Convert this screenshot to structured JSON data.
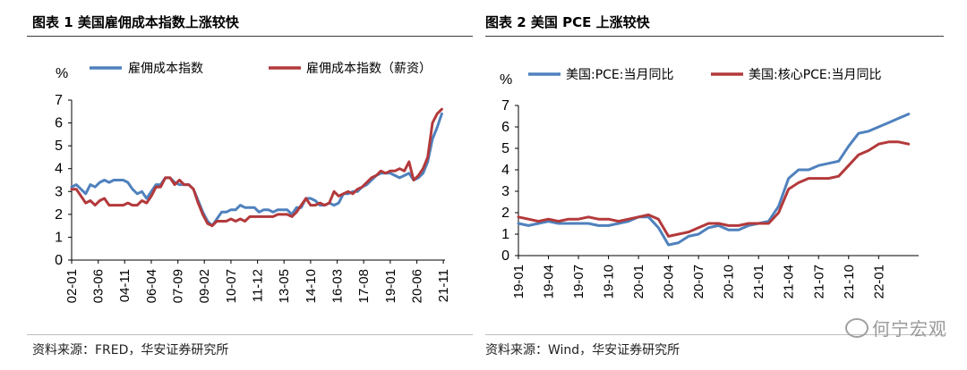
{
  "colors": {
    "blue": "#4f81bd",
    "red": "#b3393b",
    "axis": "#000000"
  },
  "charts": [
    {
      "id": "left",
      "title": "图表 1  美国雇佣成本指数上涨较快",
      "source": "资料来源：FRED，华安证券研究所",
      "chart_data": {
        "type": "line",
        "title": "美国雇佣成本指数上涨较快",
        "ylabel": "%",
        "ylim": [
          0,
          7
        ],
        "yticks": [
          0,
          1,
          2,
          3,
          4,
          5,
          6,
          7
        ],
        "xlim": [
          2002.0,
          2021.92
        ],
        "tick_labels": [
          "02-01",
          "03-06",
          "04-11",
          "06-04",
          "07-09",
          "09-02",
          "10-07",
          "11-12",
          "13-05",
          "14-10",
          "16-03",
          "17-08",
          "19-01",
          "20-06",
          "21-11"
        ],
        "tick_x": [
          2002.0,
          2003.42,
          2004.83,
          2006.25,
          2007.67,
          2009.08,
          2010.5,
          2011.92,
          2013.33,
          2014.75,
          2016.17,
          2017.58,
          2019.0,
          2020.42,
          2021.83
        ],
        "series": [
          {
            "name": "雇佣成本指数",
            "color": "#4f81bd",
            "x": [
              2002.0,
              2002.25,
              2002.5,
              2002.75,
              2003.0,
              2003.25,
              2003.5,
              2003.75,
              2004.0,
              2004.25,
              2004.5,
              2004.75,
              2005.0,
              2005.25,
              2005.5,
              2005.75,
              2006.0,
              2006.25,
              2006.5,
              2006.75,
              2007.0,
              2007.25,
              2007.5,
              2007.75,
              2008.0,
              2008.25,
              2008.5,
              2008.75,
              2009.0,
              2009.25,
              2009.5,
              2009.75,
              2010.0,
              2010.25,
              2010.5,
              2010.75,
              2011.0,
              2011.25,
              2011.5,
              2011.75,
              2012.0,
              2012.25,
              2012.5,
              2012.75,
              2013.0,
              2013.25,
              2013.5,
              2013.75,
              2014.0,
              2014.25,
              2014.5,
              2014.75,
              2015.0,
              2015.25,
              2015.5,
              2015.75,
              2016.0,
              2016.25,
              2016.5,
              2016.75,
              2017.0,
              2017.25,
              2017.5,
              2017.75,
              2018.0,
              2018.25,
              2018.5,
              2018.75,
              2019.0,
              2019.25,
              2019.5,
              2019.75,
              2020.0,
              2020.25,
              2020.5,
              2020.75,
              2021.0,
              2021.25,
              2021.5,
              2021.75
            ],
            "values": [
              3.2,
              3.3,
              3.1,
              2.9,
              3.3,
              3.2,
              3.4,
              3.5,
              3.4,
              3.5,
              3.5,
              3.5,
              3.4,
              3.1,
              2.9,
              3.0,
              2.7,
              3.0,
              3.3,
              3.3,
              3.6,
              3.6,
              3.4,
              3.3,
              3.3,
              3.3,
              3.1,
              2.6,
              2.1,
              1.7,
              1.5,
              1.8,
              2.1,
              2.1,
              2.2,
              2.2,
              2.4,
              2.3,
              2.3,
              2.3,
              2.1,
              2.2,
              2.2,
              2.1,
              2.2,
              2.2,
              2.2,
              2.0,
              2.3,
              2.3,
              2.7,
              2.7,
              2.6,
              2.4,
              2.4,
              2.5,
              2.4,
              2.5,
              2.9,
              2.9,
              3.0,
              3.0,
              3.2,
              3.3,
              3.5,
              3.7,
              3.8,
              3.8,
              3.8,
              3.7,
              3.6,
              3.7,
              3.8,
              3.5,
              3.6,
              3.8,
              4.3,
              5.3,
              5.8,
              6.4
            ]
          },
          {
            "name": "雇佣成本指数（薪资）",
            "color": "#b3393b",
            "x": [
              2002.0,
              2002.25,
              2002.5,
              2002.75,
              2003.0,
              2003.25,
              2003.5,
              2003.75,
              2004.0,
              2004.25,
              2004.5,
              2004.75,
              2005.0,
              2005.25,
              2005.5,
              2005.75,
              2006.0,
              2006.25,
              2006.5,
              2006.75,
              2007.0,
              2007.25,
              2007.5,
              2007.75,
              2008.0,
              2008.25,
              2008.5,
              2008.75,
              2009.0,
              2009.25,
              2009.5,
              2009.75,
              2010.0,
              2010.25,
              2010.5,
              2010.75,
              2011.0,
              2011.25,
              2011.5,
              2011.75,
              2012.0,
              2012.25,
              2012.5,
              2012.75,
              2013.0,
              2013.25,
              2013.5,
              2013.75,
              2014.0,
              2014.25,
              2014.5,
              2014.75,
              2015.0,
              2015.25,
              2015.5,
              2015.75,
              2016.0,
              2016.25,
              2016.5,
              2016.75,
              2017.0,
              2017.25,
              2017.5,
              2017.75,
              2018.0,
              2018.25,
              2018.5,
              2018.75,
              2019.0,
              2019.25,
              2019.5,
              2019.75,
              2020.0,
              2020.25,
              2020.5,
              2020.75,
              2021.0,
              2021.25,
              2021.5,
              2021.75
            ],
            "values": [
              3.1,
              3.1,
              2.8,
              2.5,
              2.6,
              2.4,
              2.6,
              2.7,
              2.4,
              2.4,
              2.4,
              2.4,
              2.5,
              2.4,
              2.4,
              2.6,
              2.5,
              2.8,
              3.2,
              3.2,
              3.6,
              3.6,
              3.3,
              3.5,
              3.3,
              3.3,
              3.1,
              2.5,
              2.0,
              1.6,
              1.5,
              1.7,
              1.7,
              1.7,
              1.8,
              1.7,
              1.8,
              1.7,
              1.9,
              1.9,
              1.9,
              1.9,
              1.9,
              1.9,
              2.0,
              2.0,
              2.0,
              1.9,
              2.1,
              2.4,
              2.7,
              2.4,
              2.4,
              2.5,
              2.4,
              2.5,
              3.0,
              2.8,
              2.9,
              3.0,
              2.9,
              3.1,
              3.2,
              3.4,
              3.6,
              3.7,
              3.9,
              3.8,
              3.9,
              3.9,
              4.0,
              3.9,
              4.3,
              3.5,
              3.7,
              4.0,
              4.5,
              6.0,
              6.4,
              6.6
            ]
          }
        ]
      }
    },
    {
      "id": "right",
      "title": "图表 2  美国 PCE 上涨较快",
      "source": "资料来源：Wind，华安证券研究所",
      "watermark": "何宁宏观",
      "chart_data": {
        "type": "line",
        "title": "美国 PCE 上涨较快",
        "ylabel": "%",
        "ylim": [
          0,
          7
        ],
        "yticks": [
          0,
          1,
          2,
          3,
          4,
          5,
          6,
          7
        ],
        "xlim": [
          0,
          40
        ],
        "tick_labels": [
          "19-01",
          "19-04",
          "19-07",
          "19-10",
          "20-01",
          "20-04",
          "20-07",
          "20-10",
          "21-01",
          "21-04",
          "21-07",
          "21-10",
          "22-01"
        ],
        "tick_x": [
          0,
          3,
          6,
          9,
          12,
          15,
          18,
          21,
          24,
          27,
          30,
          33,
          36
        ],
        "series": [
          {
            "name": "美国:PCE:当月同比",
            "color": "#4f81bd",
            "x": [
              0,
              1,
              2,
              3,
              4,
              5,
              6,
              7,
              8,
              9,
              10,
              11,
              12,
              13,
              14,
              15,
              16,
              17,
              18,
              19,
              20,
              21,
              22,
              23,
              24,
              25,
              26,
              27,
              28,
              29,
              30,
              31,
              32,
              33,
              34,
              35,
              36,
              37,
              38,
              39
            ],
            "values": [
              1.5,
              1.4,
              1.5,
              1.6,
              1.5,
              1.5,
              1.5,
              1.5,
              1.4,
              1.4,
              1.5,
              1.6,
              1.8,
              1.8,
              1.3,
              0.5,
              0.6,
              0.9,
              1.0,
              1.3,
              1.4,
              1.2,
              1.2,
              1.4,
              1.5,
              1.6,
              2.3,
              3.6,
              4.0,
              4.0,
              4.2,
              4.3,
              4.4,
              5.1,
              5.7,
              5.8,
              6.0,
              6.2,
              6.4,
              6.6
            ]
          },
          {
            "name": "美国:核心PCE:当月同比",
            "color": "#b3393b",
            "x": [
              0,
              1,
              2,
              3,
              4,
              5,
              6,
              7,
              8,
              9,
              10,
              11,
              12,
              13,
              14,
              15,
              16,
              17,
              18,
              19,
              20,
              21,
              22,
              23,
              24,
              25,
              26,
              27,
              28,
              29,
              30,
              31,
              32,
              33,
              34,
              35,
              36,
              37,
              38,
              39
            ],
            "values": [
              1.8,
              1.7,
              1.6,
              1.7,
              1.6,
              1.7,
              1.7,
              1.8,
              1.7,
              1.7,
              1.6,
              1.7,
              1.8,
              1.9,
              1.7,
              0.9,
              1.0,
              1.1,
              1.3,
              1.5,
              1.5,
              1.4,
              1.4,
              1.5,
              1.5,
              1.5,
              2.0,
              3.1,
              3.4,
              3.6,
              3.6,
              3.6,
              3.7,
              4.2,
              4.7,
              4.9,
              5.2,
              5.3,
              5.3,
              5.2
            ]
          }
        ]
      }
    }
  ]
}
